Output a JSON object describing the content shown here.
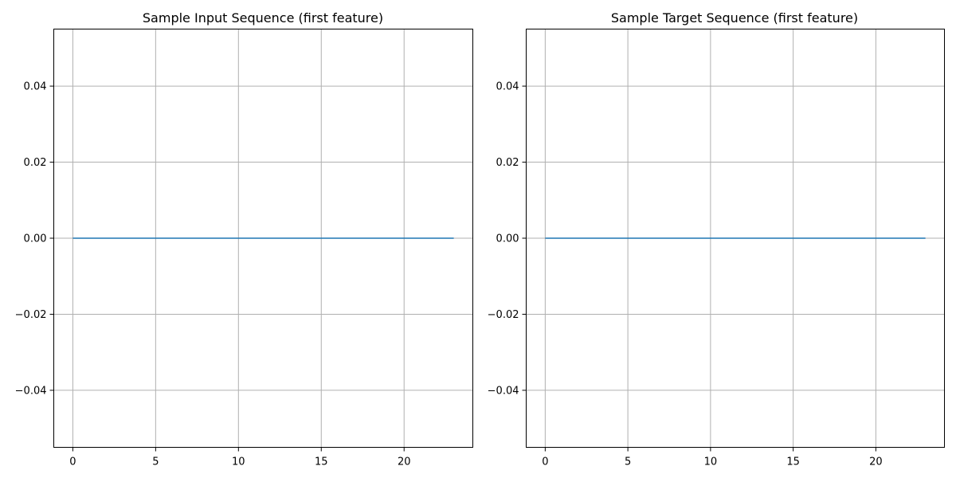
{
  "chart_data": [
    {
      "type": "line",
      "title": "Sample Input Sequence (first feature)",
      "xlabel": "",
      "ylabel": "",
      "xlim": [
        -1.15,
        24.15
      ],
      "ylim": [
        -0.055,
        0.055
      ],
      "xticks": [
        0,
        5,
        10,
        15,
        20
      ],
      "xtick_labels": [
        "0",
        "5",
        "10",
        "15",
        "20"
      ],
      "yticks": [
        -0.04,
        -0.02,
        0.0,
        0.02,
        0.04
      ],
      "ytick_labels": [
        "−0.04",
        "−0.02",
        "0.00",
        "0.02",
        "0.04"
      ],
      "grid": true,
      "series": [
        {
          "color": "#1f77b4",
          "x": [
            0,
            1,
            2,
            3,
            4,
            5,
            6,
            7,
            8,
            9,
            10,
            11,
            12,
            13,
            14,
            15,
            16,
            17,
            18,
            19,
            20,
            21,
            22,
            23
          ],
          "y": [
            0,
            0,
            0,
            0,
            0,
            0,
            0,
            0,
            0,
            0,
            0,
            0,
            0,
            0,
            0,
            0,
            0,
            0,
            0,
            0,
            0,
            0,
            0,
            0
          ]
        }
      ]
    },
    {
      "type": "line",
      "title": "Sample Target Sequence (first feature)",
      "xlabel": "",
      "ylabel": "",
      "xlim": [
        -1.15,
        24.15
      ],
      "ylim": [
        -0.055,
        0.055
      ],
      "xticks": [
        0,
        5,
        10,
        15,
        20
      ],
      "xtick_labels": [
        "0",
        "5",
        "10",
        "15",
        "20"
      ],
      "yticks": [
        -0.04,
        -0.02,
        0.0,
        0.02,
        0.04
      ],
      "ytick_labels": [
        "−0.04",
        "−0.02",
        "0.00",
        "0.02",
        "0.04"
      ],
      "grid": true,
      "series": [
        {
          "color": "#1f77b4",
          "x": [
            0,
            1,
            2,
            3,
            4,
            5,
            6,
            7,
            8,
            9,
            10,
            11,
            12,
            13,
            14,
            15,
            16,
            17,
            18,
            19,
            20,
            21,
            22,
            23
          ],
          "y": [
            0,
            0,
            0,
            0,
            0,
            0,
            0,
            0,
            0,
            0,
            0,
            0,
            0,
            0,
            0,
            0,
            0,
            0,
            0,
            0,
            0,
            0,
            0,
            0
          ]
        }
      ]
    }
  ]
}
